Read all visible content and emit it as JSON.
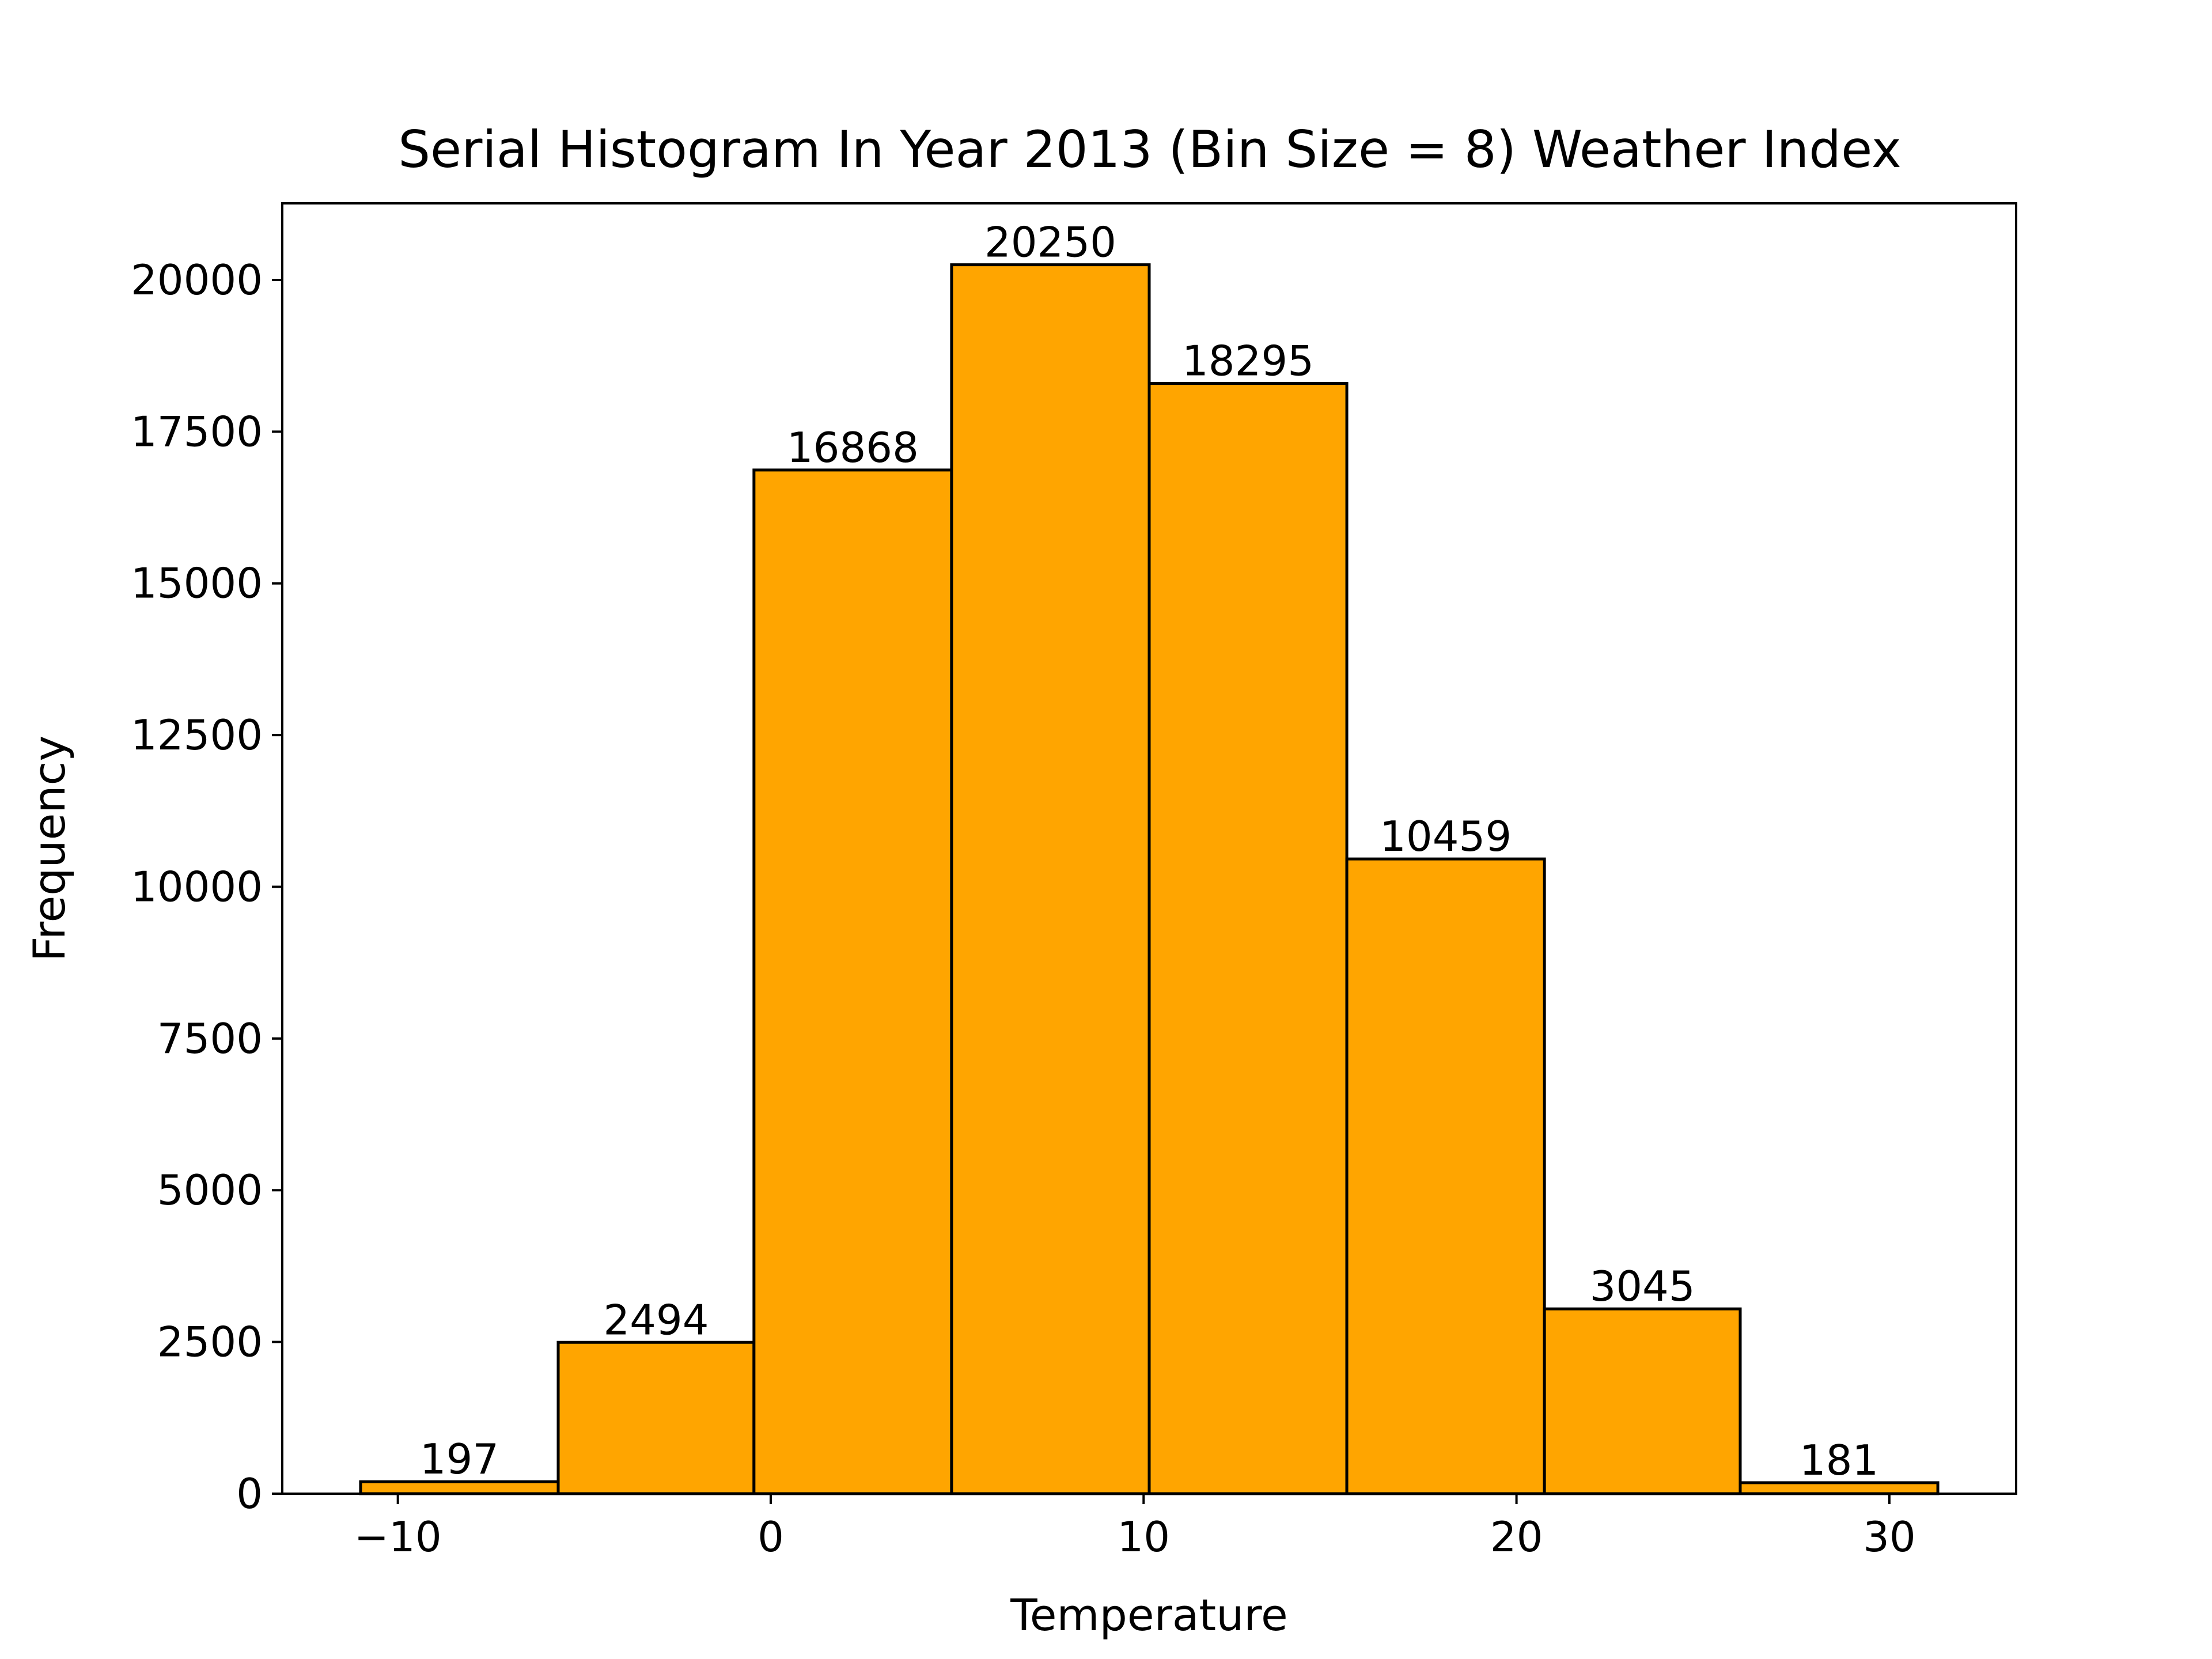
{
  "chart_data": {
    "type": "bar",
    "title": "Serial Histogram In Year 2013 (Bin Size = 8) Weather Index",
    "xlabel": "Temperature",
    "ylabel": "Frequency",
    "bins": [
      {
        "start": -11.0,
        "end": -5.7,
        "value": 197
      },
      {
        "start": -5.7,
        "end": -0.45,
        "value": 2494
      },
      {
        "start": -0.45,
        "end": 4.85,
        "value": 16868
      },
      {
        "start": 4.85,
        "end": 10.15,
        "value": 20250
      },
      {
        "start": 10.15,
        "end": 15.45,
        "value": 18295
      },
      {
        "start": 15.45,
        "end": 20.75,
        "value": 10459
      },
      {
        "start": 20.75,
        "end": 26.0,
        "value": 3045
      },
      {
        "start": 26.0,
        "end": 31.3,
        "value": 181
      }
    ],
    "values": [
      197,
      2494,
      16868,
      20250,
      18295,
      10459,
      3045,
      181
    ],
    "data_labels": [
      "197",
      "2494",
      "16868",
      "20250",
      "18295",
      "10459",
      "3045",
      "181"
    ],
    "xlim": [
      -13.1,
      33.4
    ],
    "ylim": [
      0,
      21262
    ],
    "xticks": [
      {
        "value": -10,
        "label": "−10"
      },
      {
        "value": 0,
        "label": "0"
      },
      {
        "value": 10,
        "label": "10"
      },
      {
        "value": 20,
        "label": "20"
      },
      {
        "value": 30,
        "label": "30"
      }
    ],
    "yticks": [
      {
        "value": 0,
        "label": "0"
      },
      {
        "value": 2500,
        "label": "2500"
      },
      {
        "value": 5000,
        "label": "5000"
      },
      {
        "value": 7500,
        "label": "7500"
      },
      {
        "value": 10000,
        "label": "10000"
      },
      {
        "value": 12500,
        "label": "12500"
      },
      {
        "value": 15000,
        "label": "15000"
      },
      {
        "value": 17500,
        "label": "17500"
      },
      {
        "value": 20000,
        "label": "20000"
      }
    ],
    "bar_color": "#FFA500",
    "edge_color": "#000000",
    "grid": false,
    "legend": "none"
  }
}
